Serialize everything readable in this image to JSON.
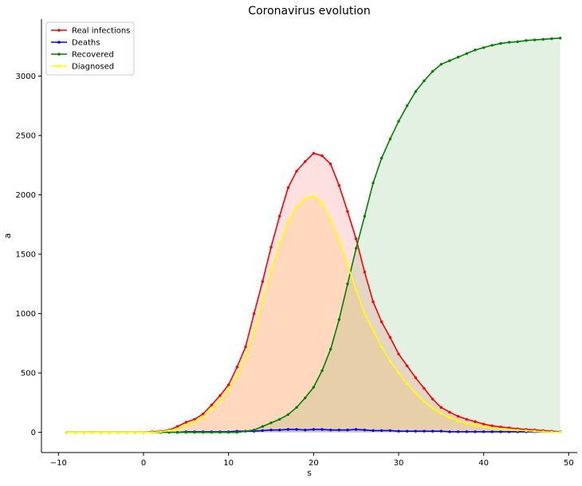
{
  "chart_data": {
    "type": "line",
    "title": "Coronavirus evolution",
    "xlabel": "s",
    "ylabel": "a",
    "xlim": [
      -12,
      51
    ],
    "ylim": [
      -170,
      3480
    ],
    "xticks": [
      -10,
      0,
      10,
      20,
      30,
      40,
      50
    ],
    "yticks": [
      0,
      500,
      1000,
      1500,
      2000,
      2500,
      3000
    ],
    "grid": false,
    "legend_position": "top-left",
    "x_start": -9,
    "x_end": 49,
    "series": [
      {
        "name": "Real infections",
        "color": "#ff0000",
        "fill_color": "#ff0000",
        "fill_opacity": 0.12,
        "values": [
          0,
          0,
          0,
          0,
          0,
          0,
          0,
          0,
          0,
          0,
          5,
          10,
          20,
          50,
          85,
          110,
          155,
          230,
          310,
          400,
          550,
          720,
          1000,
          1270,
          1560,
          1820,
          2060,
          2200,
          2280,
          2350,
          2330,
          2260,
          2080,
          1860,
          1630,
          1350,
          1100,
          930,
          800,
          660,
          560,
          460,
          370,
          280,
          210,
          170,
          135,
          110,
          90,
          70,
          55,
          45,
          38,
          30,
          25,
          20,
          15,
          10,
          5
        ]
      },
      {
        "name": "Deaths",
        "color": "#0000ff",
        "fill_color": "#0000ff",
        "fill_opacity": 0.12,
        "values": [
          0,
          0,
          0,
          0,
          0,
          0,
          0,
          0,
          0,
          0,
          0,
          0,
          0,
          0,
          5,
          5,
          5,
          5,
          5,
          5,
          10,
          10,
          10,
          15,
          20,
          20,
          25,
          25,
          20,
          25,
          25,
          20,
          20,
          20,
          25,
          20,
          15,
          15,
          15,
          10,
          10,
          10,
          10,
          10,
          10,
          5,
          5,
          5,
          5,
          5,
          5,
          5,
          5,
          5,
          5,
          5,
          5,
          5,
          5
        ]
      },
      {
        "name": "Recovered",
        "color": "#008000",
        "fill_color": "#008000",
        "fill_opacity": 0.11,
        "values": [
          0,
          0,
          0,
          0,
          0,
          0,
          0,
          0,
          0,
          0,
          0,
          0,
          0,
          0,
          0,
          0,
          0,
          0,
          0,
          0,
          0,
          10,
          20,
          50,
          80,
          110,
          150,
          210,
          290,
          380,
          520,
          700,
          950,
          1250,
          1550,
          1820,
          2100,
          2310,
          2470,
          2620,
          2750,
          2870,
          2960,
          3040,
          3100,
          3130,
          3160,
          3190,
          3220,
          3240,
          3260,
          3275,
          3285,
          3290,
          3300,
          3305,
          3310,
          3315,
          3320
        ]
      },
      {
        "name": "Diagnosed",
        "color": "#ffff00",
        "fill_color": "#ffb000",
        "fill_opacity": 0.15,
        "values": [
          0,
          0,
          0,
          0,
          0,
          0,
          0,
          0,
          0,
          0,
          0,
          5,
          15,
          30,
          60,
          90,
          130,
          200,
          270,
          360,
          480,
          640,
          850,
          1110,
          1360,
          1590,
          1770,
          1900,
          1970,
          1990,
          1930,
          1790,
          1620,
          1410,
          1200,
          1000,
          860,
          720,
          600,
          500,
          410,
          330,
          260,
          200,
          160,
          125,
          95,
          75,
          60,
          45,
          35,
          28,
          22,
          18,
          14,
          10,
          6,
          3,
          2
        ]
      }
    ]
  }
}
